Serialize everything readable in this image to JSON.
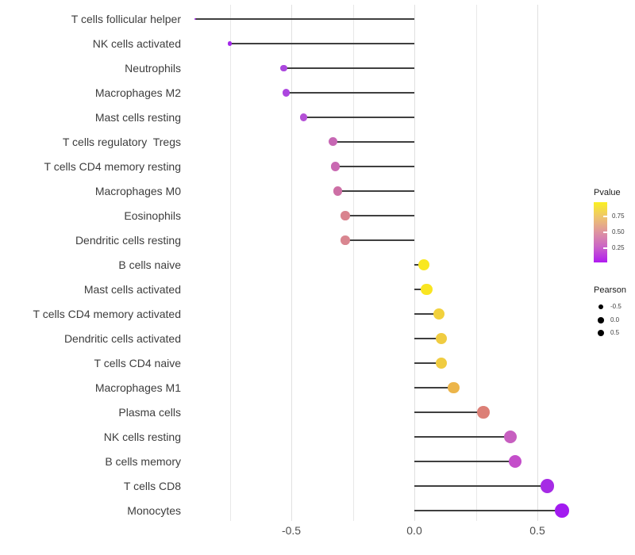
{
  "chart_data": {
    "type": "lollipop",
    "title": "",
    "xlabel": "",
    "ylabel": "",
    "categories": [
      "T cells follicular helper",
      "NK cells activated",
      "Neutrophils",
      "Macrophages M2",
      "Mast cells resting",
      "T cells regulatory  Tregs",
      "T cells CD4 memory resting",
      "Macrophages M0",
      "Eosinophils",
      "Dendritic cells resting",
      "B cells naive",
      "Mast cells activated",
      "T cells CD4 memory activated",
      "Dendritic cells activated",
      "T cells CD4 naive",
      "Macrophages M1",
      "Plasma cells",
      "NK cells resting",
      "B cells memory",
      "T cells CD8",
      "Monocytes"
    ],
    "series": [
      {
        "name": "Pearson",
        "values": [
          -0.89,
          -0.75,
          -0.53,
          -0.52,
          -0.45,
          -0.33,
          -0.32,
          -0.31,
          -0.28,
          -0.28,
          0.04,
          0.05,
          0.1,
          0.11,
          0.11,
          0.16,
          0.28,
          0.39,
          0.41,
          0.54,
          0.6
        ]
      }
    ],
    "dot_colors": [
      "#9A1ADF",
      "#A428EA",
      "#AB47DE",
      "#AC45DF",
      "#B450D6",
      "#C767B4",
      "#C969B2",
      "#CD6FA5",
      "#D9838E",
      "#D98690",
      "#F9E820",
      "#F9E521",
      "#F2D13C",
      "#F0CC41",
      "#F0CC41",
      "#ECB54A",
      "#DC7F76",
      "#C75FC0",
      "#C44ECA",
      "#A62BE5",
      "#A21BF0"
    ],
    "stem_color": "#3f3f3f",
    "xlim": [
      -0.92,
      0.64
    ],
    "x_ticks": [
      "-0.5",
      "0.0",
      "0.5"
    ],
    "x_tick_values": [
      -0.5,
      0.0,
      0.5
    ],
    "grid": {
      "major": [
        -0.5,
        0.0,
        0.5
      ],
      "minor": [
        -0.75,
        -0.25,
        0.25
      ],
      "on": true
    },
    "legend_pvalue": {
      "title": "Pvalue",
      "ticks": [
        "0.75",
        "0.50",
        "0.25"
      ],
      "tick_values": [
        0.75,
        0.5,
        0.25
      ],
      "bar_domain_top": 0.97,
      "bar_domain_bottom": 0.03,
      "gradient_top_to_bottom": [
        "#FAF021",
        "#EEC46E",
        "#DE93A0",
        "#CA63C8",
        "#B01BF0"
      ]
    },
    "legend_pearson": {
      "title": "Pearson",
      "dot_color": "#000000",
      "entries": [
        {
          "label": "-0.5",
          "radius": 3.0
        },
        {
          "label": "0.0",
          "radius": 3.7
        },
        {
          "label": "0.5",
          "radius": 4.3
        }
      ]
    }
  }
}
